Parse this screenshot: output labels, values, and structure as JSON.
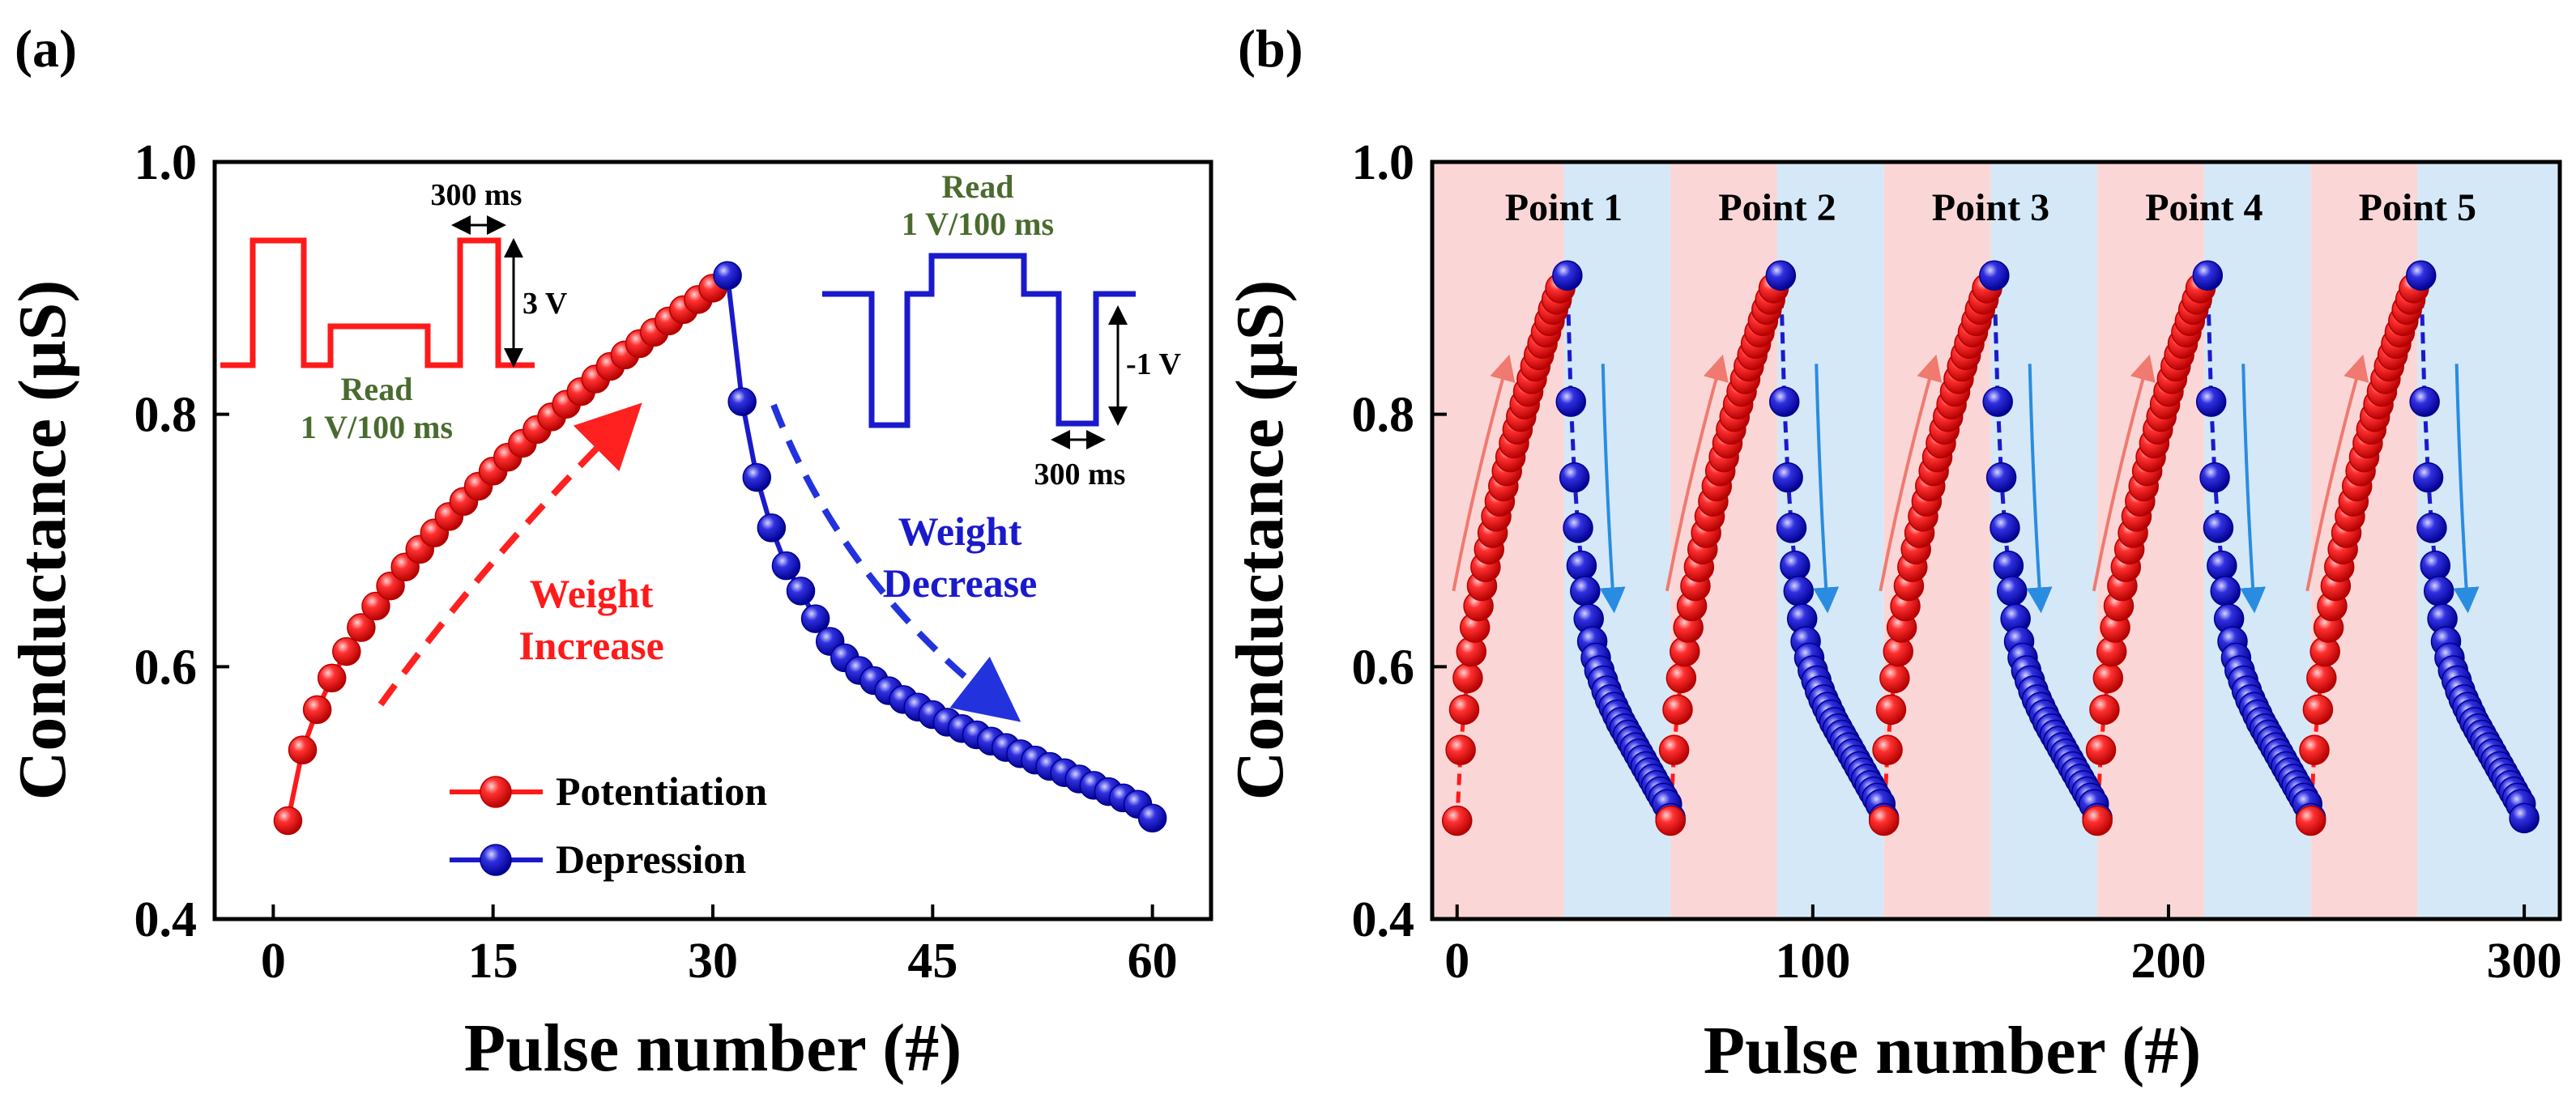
{
  "panels": {
    "a": {
      "label": "(a)"
    },
    "b": {
      "label": "(b)"
    }
  },
  "colors": {
    "potentiation": "#ff1a1a",
    "depression": "#1a1acc",
    "read_text": "#4a6b2e",
    "arrow_red": "#ff2020",
    "arrow_blue": "#2233dd",
    "thin_red": "#f07a70",
    "thin_blue": "#2a8ce0",
    "shade_red": "#fbd6d6",
    "shade_blue": "#d5e8f7"
  },
  "chart_data": [
    {
      "type": "scatter",
      "title": "",
      "xlabel": "Pulse number (#)",
      "ylabel": "Conductance (μS)",
      "xlim": [
        -4,
        64
      ],
      "ylim": [
        0.4,
        1.0
      ],
      "xticks": [
        0,
        15,
        30,
        45,
        60
      ],
      "yticks": [
        0.4,
        0.6,
        0.8,
        1.0
      ],
      "xtick_labels": [
        "0",
        "15",
        "30",
        "45",
        "60"
      ],
      "ytick_labels": [
        "0.4",
        "0.6",
        "0.8",
        "1.0"
      ],
      "legend": {
        "placement": "bottom-center",
        "entries": [
          "Potentiation",
          "Depression"
        ]
      },
      "series": [
        {
          "name": "Potentiation",
          "x": [
            1,
            2,
            3,
            4,
            5,
            6,
            7,
            8,
            9,
            10,
            11,
            12,
            13,
            14,
            15,
            16,
            17,
            18,
            19,
            20,
            21,
            22,
            23,
            24,
            25,
            26,
            27,
            28,
            29,
            30
          ],
          "values": [
            0.478,
            0.534,
            0.566,
            0.591,
            0.612,
            0.631,
            0.648,
            0.664,
            0.679,
            0.693,
            0.706,
            0.719,
            0.731,
            0.743,
            0.755,
            0.766,
            0.777,
            0.788,
            0.798,
            0.808,
            0.818,
            0.828,
            0.838,
            0.847,
            0.856,
            0.865,
            0.874,
            0.883,
            0.891,
            0.9
          ]
        },
        {
          "name": "Depression",
          "x": [
            31,
            32,
            33,
            34,
            35,
            36,
            37,
            38,
            39,
            40,
            41,
            42,
            43,
            44,
            45,
            46,
            47,
            48,
            49,
            50,
            51,
            52,
            53,
            54,
            55,
            56,
            57,
            58,
            59,
            60
          ],
          "values": [
            0.91,
            0.81,
            0.75,
            0.71,
            0.68,
            0.66,
            0.638,
            0.62,
            0.607,
            0.597,
            0.589,
            0.581,
            0.574,
            0.568,
            0.562,
            0.556,
            0.551,
            0.546,
            0.541,
            0.536,
            0.531,
            0.526,
            0.521,
            0.516,
            0.511,
            0.506,
            0.501,
            0.496,
            0.491,
            0.48
          ]
        }
      ],
      "annotations": {
        "increase": [
          "Weight",
          "Increase"
        ],
        "decrease": [
          "Weight",
          "Decrease"
        ],
        "pot_pulse": {
          "read_line1": "Read",
          "read_line2": "1 V/100 ms",
          "width_label": "300 ms",
          "amp_label": "3 V"
        },
        "dep_pulse": {
          "read_line1": "Read",
          "read_line2": "1 V/100 ms",
          "width_label": "300 ms",
          "amp_label": "-1 V"
        }
      }
    },
    {
      "type": "scatter",
      "title": "",
      "xlabel": "Pulse number (#)",
      "ylabel": "Conductance (μS)",
      "xlim": [
        -7,
        310
      ],
      "ylim": [
        0.4,
        1.0
      ],
      "xticks": [
        0,
        100,
        200,
        300
      ],
      "yticks": [
        0.4,
        0.6,
        0.8,
        1.0
      ],
      "xtick_labels": [
        "0",
        "100",
        "200",
        "300"
      ],
      "ytick_labels": [
        "0.4",
        "0.6",
        "0.8",
        "1.0"
      ],
      "cycles": 5,
      "pulses_per_phase": 30,
      "region_labels": [
        "Point 1",
        "Point 2",
        "Point 3",
        "Point 4",
        "Point 5"
      ],
      "note": "each cycle repeats the potentiation and depression series of panel (a)"
    }
  ]
}
